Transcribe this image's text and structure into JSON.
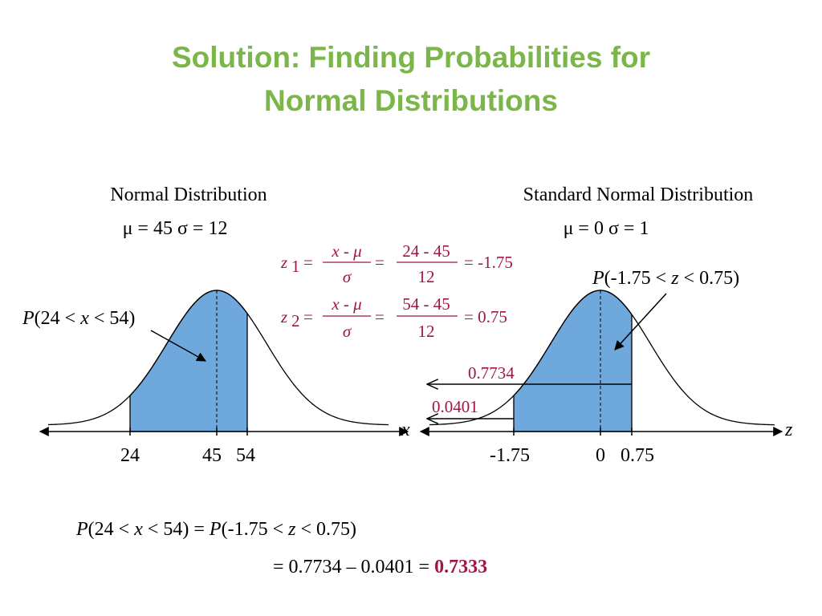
{
  "title": [
    "Solution:  Finding Probabilities for",
    "Normal Distributions"
  ],
  "left": {
    "heading": "Normal Distribution",
    "params": "μ = 45  σ = 12",
    "region_label": [
      "P",
      "(24 < ",
      "x",
      " < 54)"
    ],
    "axis_var": "x",
    "ticks": [
      "24",
      "45",
      "54"
    ]
  },
  "right": {
    "heading": "Standard Normal Distribution",
    "params": "μ = 0  σ = 1",
    "region_label": [
      "P",
      "(-1.75 < ",
      "z",
      " < 0.75)"
    ],
    "axis_var": "z",
    "ticks": [
      "-1.75",
      "0",
      "0.75"
    ],
    "upper_area": "0.7734",
    "lower_area": "0.0401"
  },
  "formulas": {
    "eq": "=",
    "var": "z",
    "num": "x - μ",
    "den": "σ",
    "z1": {
      "sub": "1",
      "num": "24 - 45",
      "den": "12",
      "result": "= -1.75"
    },
    "z2": {
      "sub": "2",
      "num": "54 - 45",
      "den": "12",
      "result": "= 0.75"
    }
  },
  "conclusion": {
    "line1": [
      "P",
      "(24 < ",
      "x",
      " < 54) = ",
      "P",
      "(-1.75 < ",
      "z",
      " < 0.75)"
    ],
    "line2": "= 0.7734 – 0.0401 = ",
    "answer": "0.7333"
  }
}
